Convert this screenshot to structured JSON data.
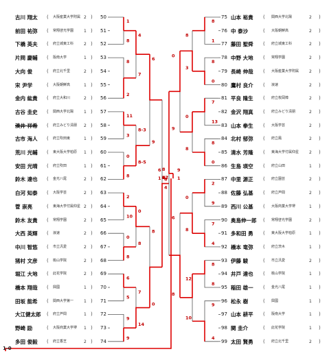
{
  "left_players": [
    {
      "name": "古川 翔太",
      "school": "大阪産業大学附属",
      "grade": "2",
      "num": "50"
    },
    {
      "name": "前田 祐弥",
      "school": "常翔啓光学園",
      "grade": "1",
      "num": "51"
    },
    {
      "name": "下橋 英夫",
      "school": "府立城東工科",
      "grade": "2",
      "num": "52"
    },
    {
      "name": "片岡 慶輔",
      "school": "阪南大学",
      "grade": "1",
      "num": "53"
    },
    {
      "name": "大向 俊",
      "school": "府立北千里",
      "grade": "2",
      "num": "54"
    },
    {
      "name": "宋 尹学",
      "school": "大阪朝鮮高",
      "grade": "1",
      "num": "55"
    },
    {
      "name": "金内 紘貴",
      "school": "府立大和川",
      "grade": "2",
      "num": "56"
    },
    {
      "name": "古谷 圭史",
      "school": "関西大学北陽",
      "grade": "1",
      "num": "57"
    },
    {
      "name": "湊井 祥希",
      "school": "府立みどり清朋",
      "grade": "2",
      "num": "58"
    },
    {
      "name": "古市 海人",
      "school": "府立吹田東",
      "grade": "1",
      "num": "59"
    },
    {
      "name": "荒川 光輔",
      "school": "東大阪大学柏原",
      "grade": "1",
      "num": "60"
    },
    {
      "name": "安田 光晴",
      "school": "府立吹田",
      "grade": "1",
      "num": "61"
    },
    {
      "name": "鈴木 達也",
      "school": "金光八尾",
      "grade": "2",
      "num": "62"
    },
    {
      "name": "白河 知泰",
      "school": "大阪学芸",
      "grade": "2",
      "num": "63"
    },
    {
      "name": "菅 崇亮",
      "school": "東海大学付属仰星",
      "grade": "2",
      "num": "64"
    },
    {
      "name": "鈴木 友貴",
      "school": "常翔学園",
      "grade": "2",
      "num": "65"
    },
    {
      "name": "大西 英輝",
      "school": "浪速",
      "grade": "2",
      "num": "66"
    },
    {
      "name": "中川 智悠",
      "school": "市立汎愛",
      "grade": "2",
      "num": "67"
    },
    {
      "name": "猪村 文彦",
      "school": "桃山学院",
      "grade": "2",
      "num": "68"
    },
    {
      "name": "堀江 大地",
      "school": "此花学院",
      "grade": "2",
      "num": "69"
    },
    {
      "name": "橋本 翔哉",
      "school": "興國",
      "grade": "1",
      "num": "70"
    },
    {
      "name": "田坂 能希",
      "school": "関西大学第一",
      "grade": "1",
      "num": "71"
    },
    {
      "name": "大江健太郎",
      "school": "府立芦間",
      "grade": "1",
      "num": "72"
    },
    {
      "name": "野崎 励",
      "school": "大阪商業大学堺",
      "grade": "1",
      "num": "73"
    },
    {
      "name": "多田 俊毅",
      "school": "府立香芝",
      "grade": "2",
      "num": "74"
    }
  ],
  "right_players": [
    {
      "num": "75",
      "name": "山本 裕貴",
      "school": "関西大学北陽",
      "grade": "2"
    },
    {
      "num": "76",
      "name": "中 泰沙",
      "school": "大阪朝鮮高",
      "grade": "2"
    },
    {
      "num": "77",
      "name": "藤田 聖舜",
      "school": "府立城東工科",
      "grade": "2"
    },
    {
      "num": "78",
      "name": "中野 大地",
      "school": "常翔学園",
      "grade": "2"
    },
    {
      "num": "79",
      "name": "長崎 伸哉",
      "school": "大阪産業大学附属",
      "grade": "2"
    },
    {
      "num": "80",
      "name": "鷹村 良介",
      "school": "浪速",
      "grade": "2"
    },
    {
      "num": "81",
      "name": "平良 隆生",
      "school": "府立枚岡樟",
      "grade": "2"
    },
    {
      "num": "82",
      "name": "金沢 翔真",
      "school": "府立みどり清朋",
      "grade": "2"
    },
    {
      "num": "83",
      "name": "山本 拳生",
      "school": "大阪学芸",
      "grade": "2"
    },
    {
      "num": "84",
      "name": "北村 郁弥",
      "school": "府立鳳",
      "grade": "2"
    },
    {
      "num": "85",
      "name": "清水 芳隆",
      "school": "東海大学付属仰星",
      "grade": "2"
    },
    {
      "num": "86",
      "name": "生島 瑛空",
      "school": "府立山田",
      "grade": "1"
    },
    {
      "num": "87",
      "name": "中里 源正",
      "school": "府立園芸",
      "grade": "2"
    },
    {
      "num": "88",
      "name": "佐藤 弘基",
      "school": "府立芦間",
      "grade": "2"
    },
    {
      "num": "89",
      "name": "西川 公基",
      "school": "大阪商業大学堺",
      "grade": "1"
    },
    {
      "num": "90",
      "name": "奥島伸一郎",
      "school": "常翔啓光学園",
      "grade": "2"
    },
    {
      "num": "91",
      "name": "多和田 勇",
      "school": "東大阪大学柏原",
      "grade": "1"
    },
    {
      "num": "92",
      "name": "橋本 竜弥",
      "school": "府立茨木",
      "grade": "1"
    },
    {
      "num": "93",
      "name": "伊藤 駿",
      "school": "市立汎愛",
      "grade": "2"
    },
    {
      "num": "94",
      "name": "井戸 達也",
      "school": "桃山学院",
      "grade": "1"
    },
    {
      "num": "95",
      "name": "稲田 雄一",
      "school": "金光八尾",
      "grade": "1"
    },
    {
      "num": "96",
      "name": "松永 樹",
      "school": "興國",
      "grade": "1"
    },
    {
      "num": "97",
      "name": "山本 耕平",
      "school": "阪南大学",
      "grade": "1"
    },
    {
      "num": "98",
      "name": "関 圭介",
      "school": "此花学院",
      "grade": "1"
    },
    {
      "num": "99",
      "name": "太田 賢勇",
      "school": "府立北千里",
      "grade": "2"
    }
  ],
  "left_scores": [
    "1",
    "8",
    "8",
    "2",
    "11",
    "3",
    "0",
    "8",
    "2",
    "10",
    "0",
    "8",
    "6",
    "5",
    "9",
    "9",
    "4",
    "7",
    "8-3",
    "8-5",
    "0",
    "8",
    "7",
    "14",
    "6",
    "9",
    "8",
    "0",
    "6",
    "4",
    "2",
    "7",
    "0",
    "8",
    "10",
    "8",
    "0",
    "8",
    "8",
    "3",
    "7",
    "0",
    "8"
  ],
  "right_scores": [
    "8",
    "1",
    "8",
    "0",
    "7",
    "13",
    "8",
    "0",
    "2",
    "9",
    "7",
    "4",
    "8",
    "8",
    "9",
    "4",
    "8",
    "3",
    "0",
    "8",
    "0",
    "8",
    "12",
    "10",
    "0",
    "9",
    "6",
    "8",
    "8",
    "1",
    "12",
    "8",
    "2",
    "8",
    "8",
    "0",
    "1",
    "8",
    "17",
    "8",
    "1",
    "8",
    "8",
    "0"
  ],
  "center_scores": [
    "6",
    "1",
    "9",
    "1"
  ],
  "footer_score": "1-0"
}
